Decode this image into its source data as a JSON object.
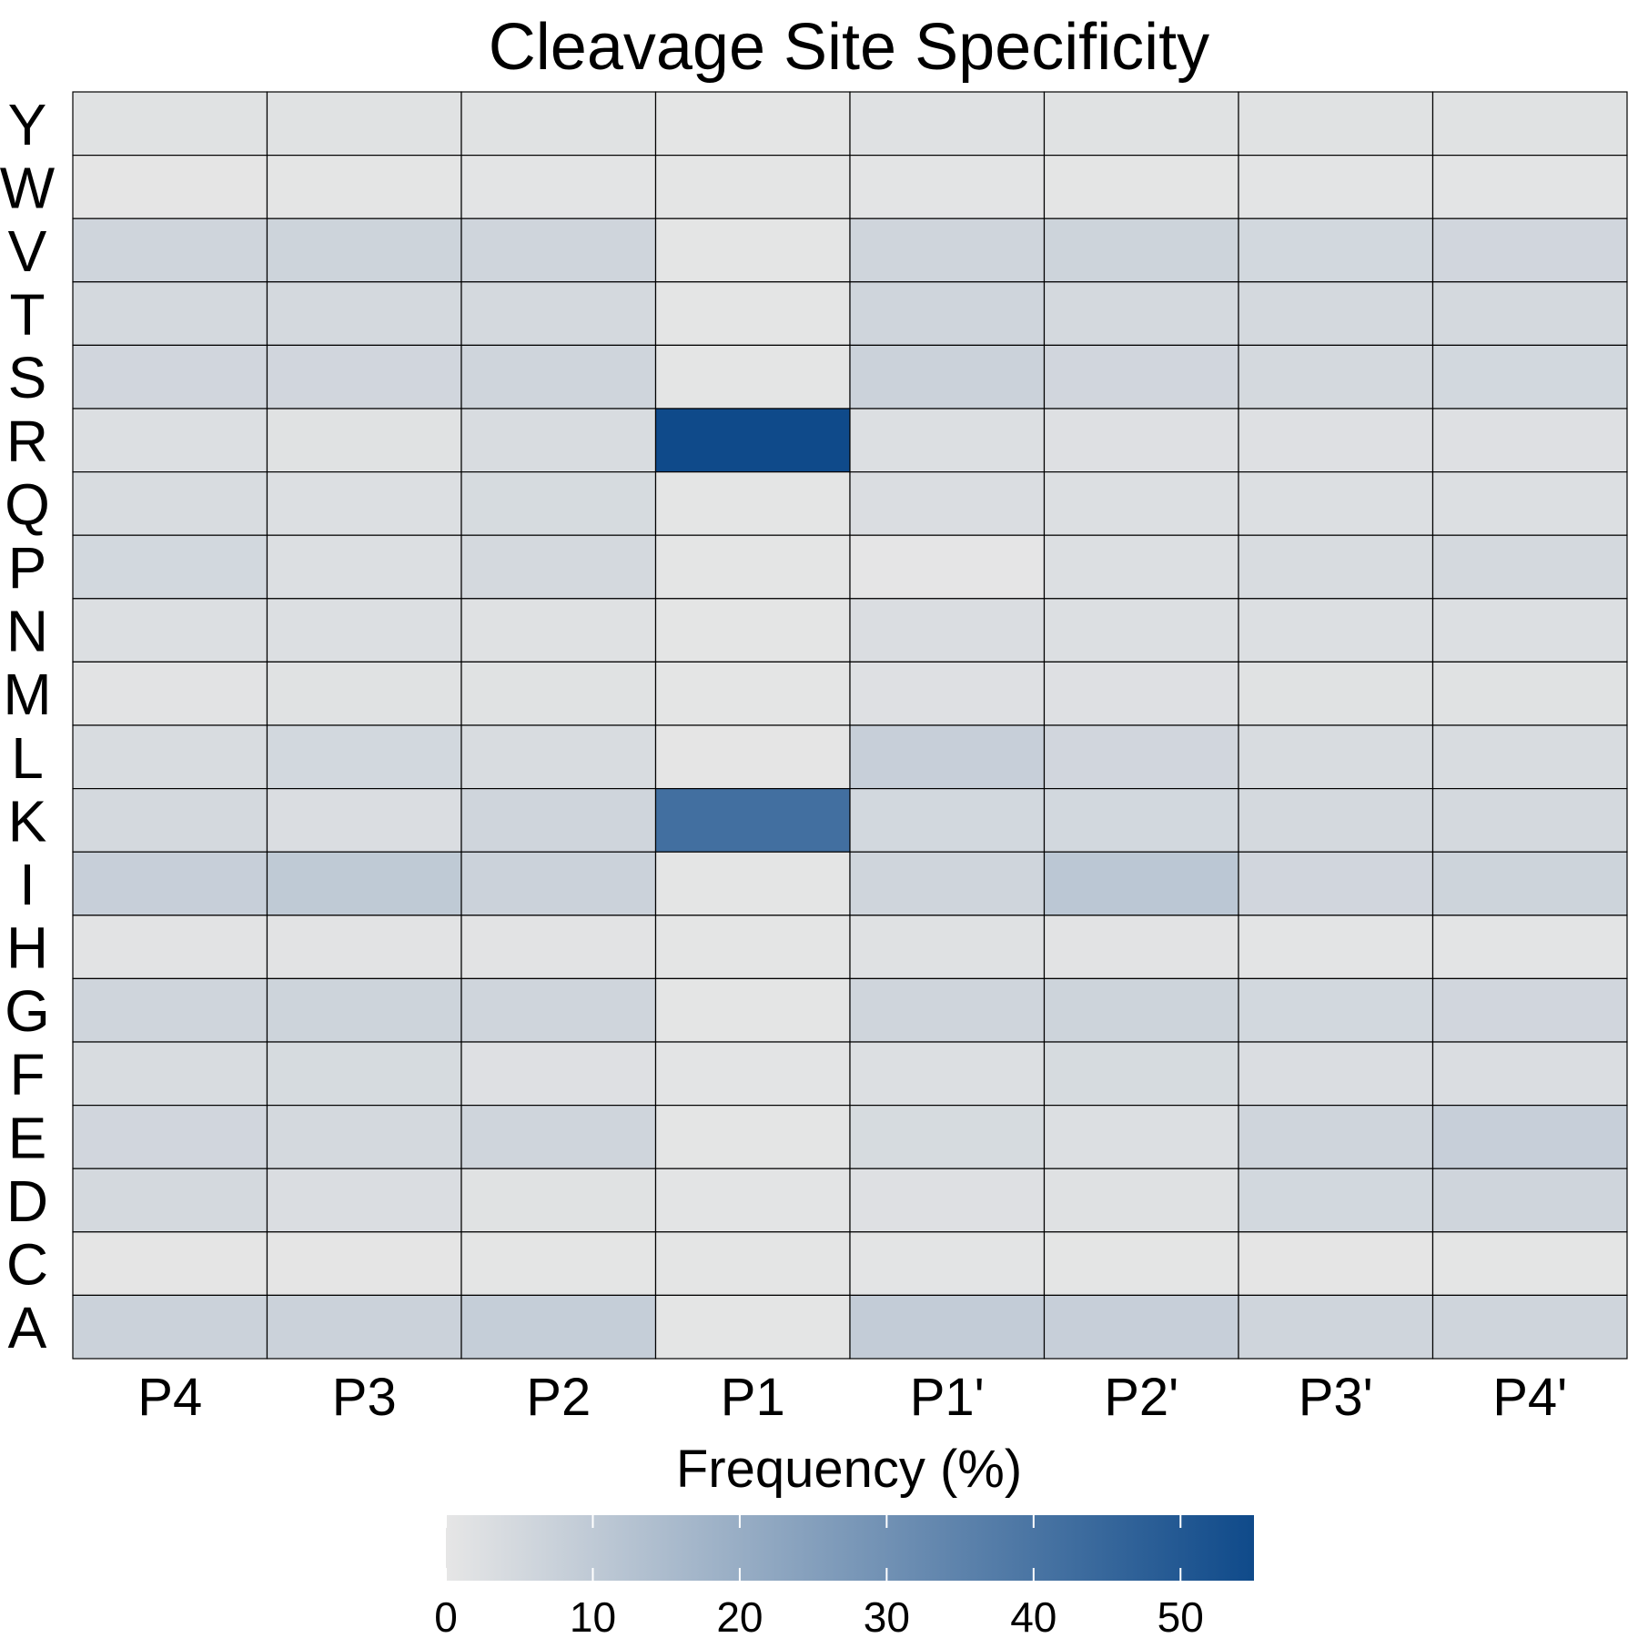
{
  "chart_data": {
    "type": "heatmap",
    "title": "Cleavage Site Specificity",
    "xlabel": "",
    "ylabel": "",
    "x_categories": [
      "P4",
      "P3",
      "P2",
      "P1",
      "P1'",
      "P2'",
      "P3'",
      "P4'"
    ],
    "y_categories": [
      "Y",
      "W",
      "V",
      "T",
      "S",
      "R",
      "Q",
      "P",
      "N",
      "M",
      "L",
      "K",
      "I",
      "H",
      "G",
      "F",
      "E",
      "D",
      "C",
      "A"
    ],
    "values": [
      [
        1.5,
        1.5,
        1.5,
        0.5,
        1.8,
        1.5,
        1.5,
        1.5
      ],
      [
        0.3,
        0.5,
        0.8,
        0.5,
        0.8,
        0.5,
        0.8,
        0.8
      ],
      [
        6.0,
        6.5,
        6.0,
        0.5,
        6.0,
        6.5,
        5.0,
        5.5
      ],
      [
        4.5,
        4.5,
        4.5,
        0.5,
        6.0,
        4.5,
        4.5,
        4.5
      ],
      [
        5.5,
        5.5,
        6.0,
        0.5,
        7.0,
        5.5,
        4.5,
        5.0
      ],
      [
        2.5,
        1.5,
        3.5,
        55.0,
        2.5,
        2.0,
        2.0,
        2.0
      ],
      [
        3.5,
        2.5,
        4.0,
        0.5,
        3.0,
        2.5,
        2.5,
        2.5
      ],
      [
        5.0,
        2.5,
        4.5,
        0.5,
        0.2,
        2.5,
        3.5,
        4.5
      ],
      [
        2.5,
        2.5,
        1.8,
        0.5,
        3.0,
        2.5,
        2.5,
        2.5
      ],
      [
        1.0,
        1.5,
        1.5,
        0.5,
        2.0,
        2.0,
        1.5,
        1.5
      ],
      [
        3.5,
        5.0,
        3.5,
        0.3,
        8.0,
        5.5,
        3.5,
        3.5
      ],
      [
        4.5,
        3.0,
        6.0,
        42.0,
        5.0,
        5.0,
        4.5,
        4.5
      ],
      [
        8.0,
        10.0,
        7.0,
        0.5,
        6.0,
        11.0,
        5.5,
        6.5
      ],
      [
        1.0,
        1.0,
        1.0,
        0.5,
        1.8,
        1.0,
        0.8,
        0.8
      ],
      [
        6.0,
        6.5,
        6.0,
        0.5,
        6.0,
        6.5,
        5.0,
        5.5
      ],
      [
        3.5,
        4.0,
        2.0,
        0.8,
        2.5,
        4.0,
        3.0,
        3.0
      ],
      [
        5.5,
        4.5,
        6.0,
        0.5,
        4.0,
        2.5,
        6.0,
        8.0
      ],
      [
        4.5,
        3.0,
        1.5,
        0.8,
        2.0,
        1.8,
        5.0,
        6.0
      ],
      [
        0.3,
        0.3,
        0.5,
        0.5,
        0.8,
        0.5,
        0.3,
        0.5
      ],
      [
        7.0,
        7.0,
        8.5,
        0.5,
        9.0,
        8.0,
        6.0,
        6.0
      ]
    ],
    "colorbar": {
      "title": "Frequency (%)",
      "min": 0,
      "max": 55,
      "ticks": [
        0,
        10,
        20,
        30,
        40,
        50
      ],
      "low_color": "#e6e6e6",
      "high_color": "#0f4a8a"
    },
    "legend_position": "bottom",
    "grid": false,
    "cell_border_color": "#000000"
  }
}
